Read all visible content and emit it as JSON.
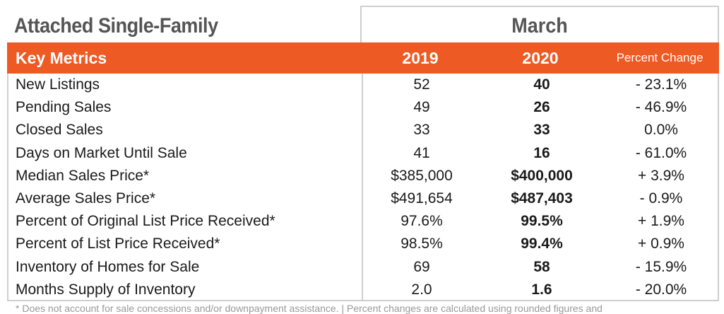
{
  "title": "Attached Single-Family",
  "period": "March",
  "header": {
    "metric_label": "Key Metrics",
    "year1": "2019",
    "year2": "2020",
    "change_label": "Percent Change"
  },
  "accent_color": "#ee5a24",
  "rows": [
    {
      "metric": "New Listings",
      "y1": "52",
      "y2": "40",
      "change": "- 23.1%"
    },
    {
      "metric": "Pending Sales",
      "y1": "49",
      "y2": "26",
      "change": "- 46.9%"
    },
    {
      "metric": "Closed Sales",
      "y1": "33",
      "y2": "33",
      "change": "0.0%"
    },
    {
      "metric": "Days on Market Until Sale",
      "y1": "41",
      "y2": "16",
      "change": "- 61.0%"
    },
    {
      "metric": "Median Sales Price*",
      "y1": "$385,000",
      "y2": "$400,000",
      "change": "+ 3.9%"
    },
    {
      "metric": "Average Sales Price*",
      "y1": "$491,654",
      "y2": "$487,403",
      "change": "- 0.9%"
    },
    {
      "metric": "Percent of Original List Price Received*",
      "y1": "97.6%",
      "y2": "99.5%",
      "change": "+ 1.9%"
    },
    {
      "metric": "Percent of List Price Received*",
      "y1": "98.5%",
      "y2": "99.4%",
      "change": "+ 0.9%"
    },
    {
      "metric": "Inventory of Homes for Sale",
      "y1": "69",
      "y2": "58",
      "change": "- 15.9%"
    },
    {
      "metric": "Months Supply of Inventory",
      "y1": "2.0",
      "y2": "1.6",
      "change": "- 20.0%"
    }
  ],
  "footnote": "* Does not account for sale concessions and/or downpayment assistance.  |  Percent changes are calculated using rounded figures and"
}
